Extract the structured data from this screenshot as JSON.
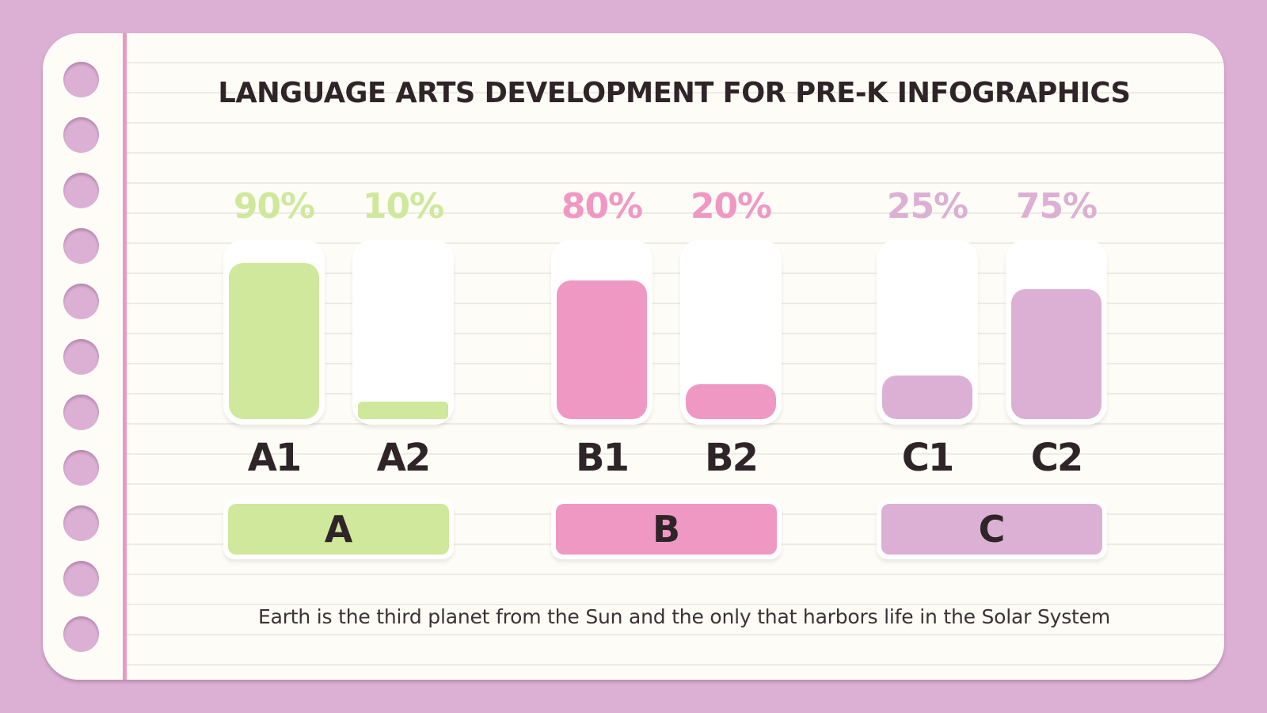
{
  "title": "LANGUAGE ARTS DEVELOPMENT FOR PRE-K INFOGRAPHICS",
  "footer_text": "Earth is the third planet from the Sun and the only that harbors life in the Solar System",
  "colors": {
    "background": "#dcb0d4",
    "paper": "#fdfcf6",
    "margin_line": "#e99ac2",
    "text_dark": "#2f2529",
    "group_a": "#cfe89c",
    "group_b": "#f098c4",
    "group_c": "#dcb0d4"
  },
  "groups": [
    {
      "label": "A",
      "color": "#cfe89c",
      "columns": [
        {
          "label": "A1",
          "percent_text": "90%",
          "value": 90
        },
        {
          "label": "A2",
          "percent_text": "10%",
          "value": 10
        }
      ]
    },
    {
      "label": "B",
      "color": "#f098c4",
      "columns": [
        {
          "label": "B1",
          "percent_text": "80%",
          "value": 80
        },
        {
          "label": "B2",
          "percent_text": "20%",
          "value": 20
        }
      ]
    },
    {
      "label": "C",
      "color": "#dcb0d4",
      "columns": [
        {
          "label": "C1",
          "percent_text": "25%",
          "value": 25
        },
        {
          "label": "C2",
          "percent_text": "75%",
          "value": 75
        }
      ]
    }
  ],
  "chart_data": {
    "type": "bar",
    "title": "LANGUAGE ARTS DEVELOPMENT FOR PRE-K INFOGRAPHICS",
    "categories": [
      "A1",
      "A2",
      "B1",
      "B2",
      "C1",
      "C2"
    ],
    "groups": [
      "A",
      "A",
      "B",
      "B",
      "C",
      "C"
    ],
    "values": [
      90,
      10,
      80,
      20,
      25,
      75
    ],
    "value_labels": [
      "90%",
      "10%",
      "80%",
      "20%",
      "25%",
      "75%"
    ],
    "series_colors": [
      "#cfe89c",
      "#cfe89c",
      "#f098c4",
      "#f098c4",
      "#dcb0d4",
      "#dcb0d4"
    ],
    "xlabel": "",
    "ylabel": "",
    "ylim": [
      0,
      100
    ],
    "grid": false,
    "legend": [
      "A",
      "B",
      "C"
    ],
    "legend_position": "bottom",
    "annotation": "Earth is the third planet from the Sun and the only that harbors life in the Solar System"
  }
}
